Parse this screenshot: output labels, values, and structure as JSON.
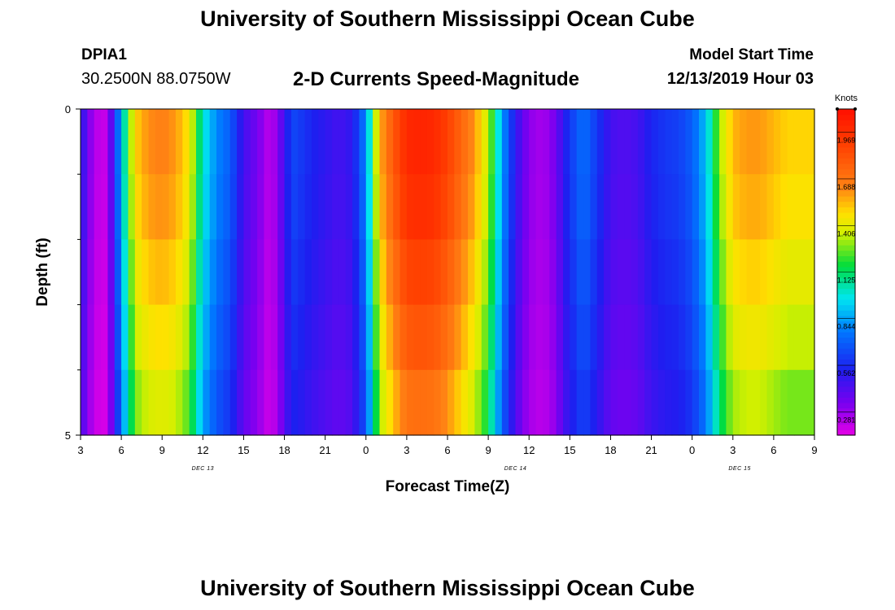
{
  "header": {
    "title": "University of Southern Mississippi Ocean Cube",
    "station_id": "DPIA1",
    "station_coords": "30.2500N 88.0750W",
    "plot_title": "2-D Currents Speed-Magnitude",
    "model_start_label": "Model Start Time",
    "model_start_value": "12/13/2019 Hour 03"
  },
  "footer": {
    "title": "University of Southern Mississippi Ocean Cube"
  },
  "chart_data": {
    "type": "heatmap",
    "title": "2-D Currents Speed-Magnitude",
    "xlabel": "Forecast Time(Z)",
    "ylabel": "Depth (ft)",
    "units": "Knots",
    "x_tick_labels": [
      "3",
      "6",
      "9",
      "12",
      "15",
      "18",
      "21",
      "0",
      "3",
      "6",
      "9",
      "12",
      "15",
      "18",
      "21",
      "0",
      "3",
      "6",
      "9"
    ],
    "x_range_hours": [
      0,
      54
    ],
    "date_labels": [
      {
        "label": "DEC 13",
        "hour": 9
      },
      {
        "label": "DEC 14",
        "hour": 32
      },
      {
        "label": "DEC 15",
        "hour": 48.5
      }
    ],
    "y_tick_labels": [
      {
        "label": "0",
        "value": 0
      },
      {
        "label": "5",
        "value": 5
      }
    ],
    "y_minor_ticks": [
      1,
      2,
      3,
      4
    ],
    "depth_range": [
      0,
      5
    ],
    "color_scale": {
      "min": 0.14,
      "max": 2.11,
      "tick_labels": [
        "0.281",
        "0.562",
        "0.844",
        "1.125",
        "1.406",
        "1.688",
        "1.969"
      ],
      "tick_values": [
        0.281,
        0.562,
        0.844,
        1.125,
        1.406,
        1.688,
        1.969
      ]
    },
    "time_step_hours": 0.5,
    "depth_layers": 5,
    "speed_profile_hours": [
      0,
      0.5,
      1,
      1.5,
      2,
      3,
      4,
      5,
      6,
      7,
      8,
      9,
      10,
      11,
      12,
      13,
      14,
      15,
      15.5,
      16,
      17,
      18,
      19,
      20,
      21,
      22,
      23,
      24,
      25,
      26,
      27,
      28,
      29,
      30,
      31,
      32,
      33,
      34,
      35,
      35.5,
      36,
      37,
      38,
      39,
      40,
      41,
      42,
      43,
      44,
      45,
      46,
      47,
      48,
      49,
      50,
      51,
      52,
      53,
      54
    ],
    "surface_speed": [
      0.55,
      0.35,
      0.25,
      0.18,
      0.22,
      0.9,
      1.5,
      1.62,
      1.65,
      1.6,
      1.45,
      1.0,
      0.8,
      0.7,
      0.45,
      0.35,
      0.2,
      0.45,
      0.65,
      0.62,
      0.55,
      0.5,
      0.45,
      0.5,
      0.8,
      1.55,
      1.8,
      2.0,
      2.02,
      2.0,
      1.9,
      1.75,
      1.6,
      1.35,
      0.85,
      0.5,
      0.3,
      0.25,
      0.35,
      0.5,
      0.6,
      0.75,
      0.6,
      0.45,
      0.42,
      0.45,
      0.55,
      0.6,
      0.62,
      0.7,
      0.9,
      1.3,
      1.55,
      1.6,
      1.6,
      1.55,
      1.5,
      1.5,
      1.5
    ],
    "depth_attenuation": [
      1.0,
      0.98,
      0.94,
      0.9,
      0.85
    ]
  }
}
